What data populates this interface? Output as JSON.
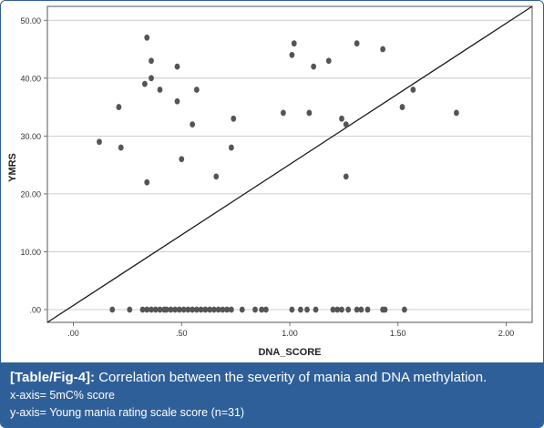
{
  "chart_data": {
    "type": "scatter",
    "xlabel": "DNA_SCORE",
    "ylabel": "YMRS",
    "xlim": [
      -0.12,
      2.12
    ],
    "ylim": [
      -2.2,
      52.4
    ],
    "x_ticks": [
      ".00",
      ".50",
      "1.00",
      "1.50",
      "2.00"
    ],
    "x_tick_values": [
      0,
      0.5,
      1.0,
      1.5,
      2.0
    ],
    "y_ticks": [
      ".00",
      "10.00",
      "20.00",
      "30.00",
      "40.00",
      "50.00"
    ],
    "y_tick_values": [
      0,
      10,
      20,
      30,
      40,
      50
    ],
    "grid": "horizontal",
    "legend": "none",
    "colors": {
      "point": "#555555",
      "line": "#1a1a1a",
      "grid": "#bdbdbd",
      "axis": "#555555"
    },
    "fit_line": {
      "x": [
        -0.12,
        2.12
      ],
      "y": [
        -2.2,
        52.4
      ]
    },
    "points": [
      {
        "x": 0.12,
        "y": 29
      },
      {
        "x": 0.21,
        "y": 35
      },
      {
        "x": 0.22,
        "y": 28
      },
      {
        "x": 0.33,
        "y": 39
      },
      {
        "x": 0.34,
        "y": 47
      },
      {
        "x": 0.34,
        "y": 22
      },
      {
        "x": 0.36,
        "y": 43
      },
      {
        "x": 0.36,
        "y": 40
      },
      {
        "x": 0.4,
        "y": 38
      },
      {
        "x": 0.48,
        "y": 42
      },
      {
        "x": 0.48,
        "y": 36
      },
      {
        "x": 0.5,
        "y": 26
      },
      {
        "x": 0.55,
        "y": 32
      },
      {
        "x": 0.57,
        "y": 38
      },
      {
        "x": 0.66,
        "y": 23
      },
      {
        "x": 0.73,
        "y": 28
      },
      {
        "x": 0.74,
        "y": 33
      },
      {
        "x": 0.97,
        "y": 34
      },
      {
        "x": 1.01,
        "y": 44
      },
      {
        "x": 1.02,
        "y": 46
      },
      {
        "x": 1.09,
        "y": 34
      },
      {
        "x": 1.11,
        "y": 42
      },
      {
        "x": 1.18,
        "y": 43
      },
      {
        "x": 1.24,
        "y": 33
      },
      {
        "x": 1.26,
        "y": 32
      },
      {
        "x": 1.26,
        "y": 23
      },
      {
        "x": 1.31,
        "y": 46
      },
      {
        "x": 1.43,
        "y": 45
      },
      {
        "x": 1.52,
        "y": 35
      },
      {
        "x": 1.57,
        "y": 38
      },
      {
        "x": 1.77,
        "y": 34
      },
      {
        "x": 0.18,
        "y": 0
      },
      {
        "x": 0.26,
        "y": 0
      },
      {
        "x": 0.32,
        "y": 0
      },
      {
        "x": 0.34,
        "y": 0
      },
      {
        "x": 0.36,
        "y": 0
      },
      {
        "x": 0.38,
        "y": 0
      },
      {
        "x": 0.4,
        "y": 0
      },
      {
        "x": 0.42,
        "y": 0
      },
      {
        "x": 0.43,
        "y": 0
      },
      {
        "x": 0.45,
        "y": 0
      },
      {
        "x": 0.47,
        "y": 0
      },
      {
        "x": 0.49,
        "y": 0
      },
      {
        "x": 0.51,
        "y": 0
      },
      {
        "x": 0.53,
        "y": 0
      },
      {
        "x": 0.55,
        "y": 0
      },
      {
        "x": 0.57,
        "y": 0
      },
      {
        "x": 0.59,
        "y": 0
      },
      {
        "x": 0.61,
        "y": 0
      },
      {
        "x": 0.63,
        "y": 0
      },
      {
        "x": 0.65,
        "y": 0
      },
      {
        "x": 0.67,
        "y": 0
      },
      {
        "x": 0.69,
        "y": 0
      },
      {
        "x": 0.71,
        "y": 0
      },
      {
        "x": 0.73,
        "y": 0
      },
      {
        "x": 0.78,
        "y": 0
      },
      {
        "x": 0.84,
        "y": 0
      },
      {
        "x": 0.87,
        "y": 0
      },
      {
        "x": 0.89,
        "y": 0
      },
      {
        "x": 1.01,
        "y": 0
      },
      {
        "x": 1.05,
        "y": 0
      },
      {
        "x": 1.08,
        "y": 0
      },
      {
        "x": 1.12,
        "y": 0
      },
      {
        "x": 1.2,
        "y": 0
      },
      {
        "x": 1.22,
        "y": 0
      },
      {
        "x": 1.24,
        "y": 0
      },
      {
        "x": 1.27,
        "y": 0
      },
      {
        "x": 1.31,
        "y": 0
      },
      {
        "x": 1.33,
        "y": 0
      },
      {
        "x": 1.36,
        "y": 0
      },
      {
        "x": 1.43,
        "y": 0
      },
      {
        "x": 1.44,
        "y": 0
      },
      {
        "x": 1.53,
        "y": 0
      }
    ]
  },
  "caption": {
    "label": "[Table/Fig-4]:",
    "title": " Correlation between the severity of mania and DNA methylation.",
    "xaxis_note": "x-axis= 5mC% score",
    "yaxis_note": "y-axis= Young mania rating scale score (n=31)"
  }
}
